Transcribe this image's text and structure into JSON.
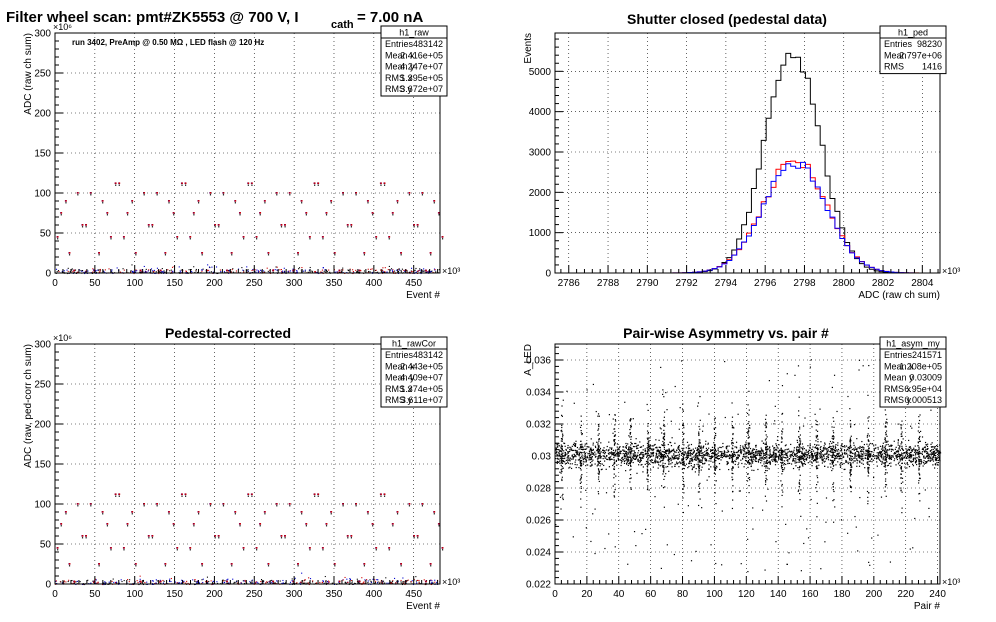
{
  "canvas_title": "Filter wheel scan: pmt#ZK5553 @   700 V, I",
  "canvas_title_sub": "cath",
  "canvas_title_tail": "= 7.00 nA",
  "chart_data": [
    {
      "type": "scatter",
      "title": "",
      "annotation": "run 3402, PreAmp @ 0.50 MΩ , LED flash @  120 Hz",
      "xlabel": "Event #",
      "ylabel": "ADC (raw ch sum)",
      "x_exponent": "×10³",
      "y_exponent": "×10⁶",
      "xlim": [
        0,
        483
      ],
      "ylim": [
        0,
        300
      ],
      "xticks": [
        0,
        50,
        100,
        150,
        200,
        250,
        300,
        350,
        400,
        450
      ],
      "yticks": [
        0,
        50,
        100,
        150,
        200,
        250,
        300
      ],
      "grid": true,
      "levels": [
        3,
        25,
        45,
        60,
        75,
        90,
        100,
        112
      ],
      "stat_box": {
        "name": "h1_raw",
        "rows": [
          [
            "Entries",
            "483142"
          ],
          [
            "Mean x",
            "2.416e+05"
          ],
          [
            "Mean y",
            "4.247e+07"
          ],
          [
            "RMS x",
            "1.395e+05"
          ],
          [
            "RMS y",
            "3.672e+07"
          ]
        ]
      }
    },
    {
      "type": "line",
      "title": "Shutter closed (pedestal data)",
      "xlabel": "ADC (raw ch sum)",
      "ylabel": "Events",
      "x_exponent": "×10³",
      "xlim": [
        2785.3,
        2804.9
      ],
      "ylim": [
        0,
        5950
      ],
      "xticks": [
        2786,
        2788,
        2790,
        2792,
        2794,
        2796,
        2798,
        2800,
        2802,
        2804
      ],
      "yticks": [
        0,
        1000,
        2000,
        3000,
        4000,
        5000
      ],
      "grid": true,
      "series": [
        {
          "color": "#000000",
          "mean": 2797.4,
          "sigma": 1.4,
          "peak": 5550
        },
        {
          "color": "#ff0000",
          "mean": 2797.5,
          "sigma": 1.6,
          "peak": 2800
        },
        {
          "color": "#0000ff",
          "mean": 2797.5,
          "sigma": 1.6,
          "peak": 2750
        }
      ],
      "stat_box": {
        "name": "h1_ped",
        "rows": [
          [
            "Entries",
            "98230"
          ],
          [
            "Mean",
            "2.797e+06"
          ],
          [
            "RMS",
            "1416"
          ]
        ]
      }
    },
    {
      "type": "scatter",
      "title": "Pedestal-corrected",
      "xlabel": "Event #",
      "ylabel": "ADC (raw, ped-corr ch sum)",
      "x_exponent": "×10³",
      "y_exponent": "×10⁶",
      "xlim": [
        0,
        483
      ],
      "ylim": [
        0,
        300
      ],
      "xticks": [
        0,
        50,
        100,
        150,
        200,
        250,
        300,
        350,
        400,
        450
      ],
      "yticks": [
        0,
        50,
        100,
        150,
        200,
        250,
        300
      ],
      "grid": true,
      "levels": [
        3,
        25,
        45,
        60,
        75,
        90,
        100,
        112
      ],
      "stat_box": {
        "name": "h1_rawCor",
        "rows": [
          [
            "Entries",
            "483142"
          ],
          [
            "Mean x",
            "2.443e+05"
          ],
          [
            "Mean y",
            "4.409e+07"
          ],
          [
            "RMS x",
            "1.374e+05"
          ],
          [
            "RMS y",
            "3.611e+07"
          ]
        ]
      }
    },
    {
      "type": "scatter",
      "title": "Pair-wise Asymmetry vs. pair #",
      "xlabel": "Pair #",
      "ylabel": "A_LED",
      "x_exponent": "×10³",
      "xlim": [
        0,
        241.5
      ],
      "ylim": [
        0.022,
        0.037
      ],
      "xticks": [
        0,
        20,
        40,
        60,
        80,
        100,
        120,
        140,
        160,
        180,
        200,
        220,
        240
      ],
      "yticks": [
        0.022,
        0.024,
        0.026,
        0.028,
        0.03,
        0.032,
        0.034,
        0.036
      ],
      "ytick_labels": [
        "0.022",
        "0.024",
        "0.026",
        "0.028",
        "0.03",
        "0.032",
        "0.034",
        "0.036"
      ],
      "grid": true,
      "band_center": 0.03009,
      "band_halfwidth": 0.0008,
      "spike_positions": [
        4,
        16,
        27,
        37,
        47,
        58,
        68,
        80,
        90,
        100,
        111,
        121,
        132,
        142,
        153,
        164,
        174,
        185,
        196,
        207,
        217,
        228
      ],
      "stat_box": {
        "name": "h1_asym_my",
        "rows": [
          [
            "Entries",
            "241571"
          ],
          [
            "Mean x",
            "1.208e+05"
          ],
          [
            "Mean y",
            "0.03009"
          ],
          [
            "RMS x",
            "6.95e+04"
          ],
          [
            "RMS y",
            "0.000513"
          ]
        ]
      }
    }
  ]
}
